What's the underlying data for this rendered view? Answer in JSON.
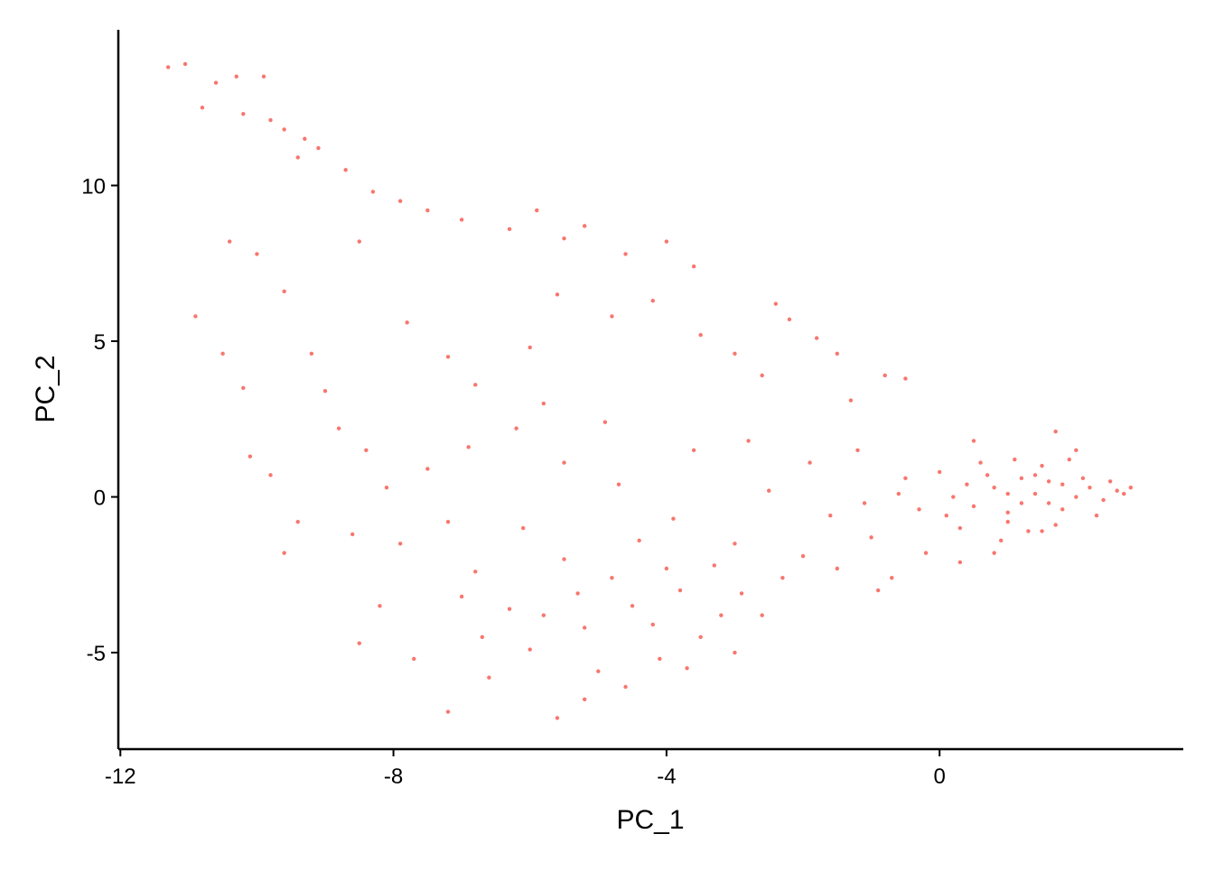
{
  "chart_data": {
    "type": "scatter",
    "xlabel": "PC_1",
    "ylabel": "PC_2",
    "xlim": [
      -12.03,
      3.57
    ],
    "ylim": [
      -8.1,
      15
    ],
    "xticks": [
      -12,
      -8,
      -4,
      0
    ],
    "yticks": [
      -5,
      0,
      5,
      10
    ],
    "color": "#F8766D",
    "x": [
      -11.3,
      -11.05,
      -10.6,
      -10.3,
      -9.9,
      -10.8,
      -10.2,
      -9.8,
      -9.6,
      -9.3,
      -9.1,
      -9.4,
      -8.7,
      -8.3,
      -7.9,
      -8.5,
      -7.5,
      -7.0,
      -6.3,
      -5.9,
      -5.5,
      -5.2,
      -4.6,
      -4.0,
      -3.6,
      -2.4,
      -2.2,
      -1.8,
      -1.5,
      -0.8,
      -0.5,
      -10.4,
      -10.9,
      -10.0,
      -9.6,
      -9.2,
      -10.5,
      -10.2,
      -9.0,
      -10.1,
      -9.8,
      -9.4,
      -9.6,
      -8.8,
      -8.4,
      -7.8,
      -7.2,
      -6.8,
      -6.0,
      -5.6,
      -4.8,
      -4.2,
      -3.5,
      -3.0,
      -2.6,
      -1.3,
      -8.6,
      -8.2,
      -8.5,
      -7.7,
      -7.2,
      -6.6,
      -5.6,
      -5.2,
      -4.5,
      -4.2,
      -3.8,
      -4.8,
      -5.2,
      -3.5,
      -4.1,
      -5.8,
      -6.3,
      -6.7,
      -5.0,
      -3.3,
      -2.9,
      -4.4,
      -5.5,
      -6.1,
      -6.8,
      -7.2,
      -7.5,
      -6.9,
      -6.2,
      -5.5,
      -4.7,
      -3.9,
      -3.0,
      -2.5,
      -2.0,
      -1.6,
      -1.0,
      -0.5,
      -0.2,
      -0.7,
      -3.6,
      -4.9,
      -5.8,
      -2.8,
      -1.9,
      -1.2,
      -7.9,
      -8.1,
      -7.0,
      -6.0,
      -4.6,
      -3.7,
      -3.0,
      -2.6,
      -5.3,
      -4.0,
      -3.2,
      -2.3,
      -1.5,
      -0.9,
      0.2,
      0.5,
      0.8,
      1.0,
      1.2,
      1.4,
      1.6,
      1.8,
      2.0,
      2.2,
      2.4,
      2.6,
      2.8,
      1.1,
      1.5,
      1.9,
      0.6,
      0.3,
      0.9,
      1.7,
      2.3,
      0.0,
      -0.3,
      1.3,
      0.7,
      1.0,
      1.6,
      2.1,
      0.4,
      1.2,
      1.8,
      2.5,
      0.1,
      -0.6,
      -1.1,
      1.7,
      1.5,
      0.8,
      0.3,
      2.0,
      1.0,
      1.4,
      2.7,
      0.5
    ],
    "values": [
      13.8,
      13.9,
      13.3,
      13.5,
      13.5,
      12.5,
      12.3,
      12.1,
      11.8,
      11.5,
      11.2,
      10.9,
      10.5,
      9.8,
      9.5,
      8.2,
      9.2,
      8.9,
      8.6,
      9.2,
      8.3,
      8.7,
      7.8,
      8.2,
      7.4,
      6.2,
      5.7,
      5.1,
      4.6,
      3.9,
      3.8,
      8.2,
      5.8,
      7.8,
      6.6,
      4.6,
      4.6,
      3.5,
      3.4,
      1.3,
      0.7,
      -0.8,
      -1.8,
      2.2,
      1.5,
      5.6,
      4.5,
      3.6,
      4.8,
      6.5,
      5.8,
      6.3,
      5.2,
      4.6,
      3.9,
      3.1,
      -1.2,
      -3.5,
      -4.7,
      -5.2,
      -6.9,
      -5.8,
      -7.1,
      -6.5,
      -3.5,
      -4.1,
      -3.0,
      -2.6,
      -4.2,
      -4.5,
      -5.2,
      -3.8,
      -3.6,
      -4.5,
      -5.6,
      -2.2,
      -3.1,
      -1.4,
      -2.0,
      -1.0,
      -2.4,
      -0.8,
      0.9,
      1.6,
      2.2,
      1.1,
      0.4,
      -0.7,
      -1.5,
      0.2,
      -1.9,
      -0.6,
      -1.3,
      0.6,
      -1.8,
      -2.6,
      1.5,
      2.4,
      3.0,
      1.8,
      1.1,
      1.5,
      -1.5,
      0.3,
      -3.2,
      -4.9,
      -6.1,
      -5.5,
      -5.0,
      -3.8,
      -3.1,
      -2.3,
      -3.8,
      -2.6,
      -2.3,
      -3.0,
      0.0,
      -0.3,
      0.3,
      -0.5,
      0.6,
      0.1,
      -0.2,
      0.4,
      0.0,
      0.3,
      -0.1,
      0.2,
      0.3,
      1.2,
      1.0,
      1.2,
      1.1,
      -1.0,
      -1.4,
      -0.9,
      -0.6,
      0.8,
      -0.4,
      -1.1,
      0.7,
      0.1,
      0.5,
      0.6,
      0.4,
      -0.2,
      -0.4,
      0.5,
      -0.6,
      0.1,
      -0.2,
      2.1,
      -1.1,
      -1.8,
      -2.1,
      1.5,
      -0.8,
      0.7,
      0.1,
      1.8
    ]
  }
}
